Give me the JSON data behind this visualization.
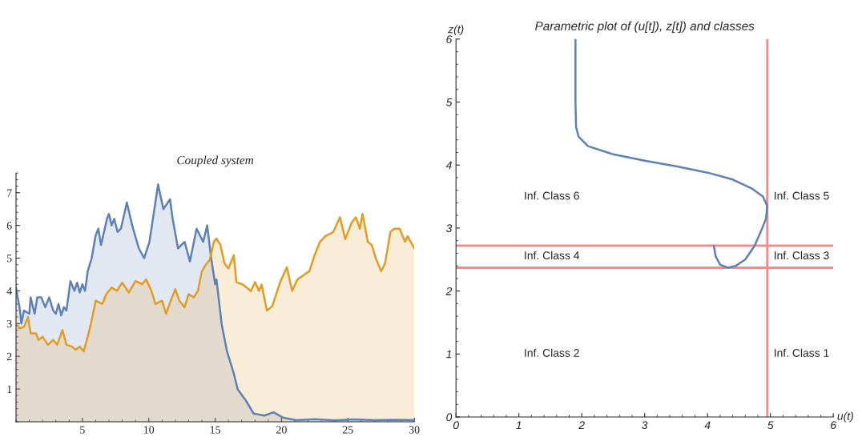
{
  "chart_data": [
    {
      "type": "area",
      "title": "Coupled system",
      "xlim": [
        0,
        30
      ],
      "ylim": [
        0,
        7.6
      ],
      "xticks": [
        5,
        10,
        15,
        20,
        25,
        30
      ],
      "yticks": [
        1,
        2,
        3,
        4,
        5,
        6,
        7
      ],
      "grid": false,
      "legend": false,
      "series": [
        {
          "color": "#5e81b5",
          "x": [
            0,
            0.3,
            0.4,
            0.6,
            1.0,
            1.1,
            1.4,
            1.6,
            1.9,
            2.2,
            2.5,
            2.8,
            3.0,
            3.2,
            3.4,
            3.6,
            3.8,
            4.1,
            4.4,
            4.6,
            4.8,
            5.0,
            5.2,
            5.4,
            5.7,
            6.0,
            6.2,
            6.4,
            6.85,
            7.0,
            7.2,
            7.4,
            7.65,
            7.9,
            8.35,
            8.75,
            9.25,
            9.65,
            10.05,
            10.7,
            11.1,
            11.6,
            11.8,
            12.2,
            12.7,
            13.1,
            13.6,
            14.1,
            14.4,
            14.7,
            15.0,
            15.1,
            15.5,
            15.9,
            16.4,
            16.7,
            17.3,
            17.9,
            18.7,
            19.4,
            20.1,
            21.1,
            22.5,
            24.0,
            25.5,
            27.0,
            28.5,
            30.0
          ],
          "values": [
            4.1,
            3.4,
            3.0,
            3.4,
            3.3,
            3.8,
            3.3,
            3.8,
            3.8,
            3.5,
            3.8,
            3.4,
            3.3,
            3.6,
            3.25,
            3.5,
            3.4,
            4.3,
            4.0,
            4.25,
            3.95,
            4.2,
            4.0,
            4.6,
            5.0,
            5.7,
            5.9,
            5.4,
            6.2,
            6.35,
            6.0,
            6.2,
            5.8,
            5.9,
            6.7,
            6.0,
            5.3,
            5.0,
            5.5,
            7.25,
            6.5,
            6.8,
            6.2,
            5.3,
            5.5,
            4.9,
            5.9,
            5.5,
            6.0,
            5.0,
            4.2,
            4.35,
            2.96,
            2.14,
            1.48,
            0.99,
            0.66,
            0.25,
            0.19,
            0.29,
            0.13,
            0.05,
            0.08,
            0.04,
            0.07,
            0.05,
            0.06,
            0.05
          ]
        },
        {
          "color": "#e19c24",
          "x": [
            0,
            0.3,
            0.6,
            0.9,
            1.1,
            1.5,
            1.7,
            2.0,
            2.4,
            2.8,
            3.1,
            3.5,
            3.8,
            4.2,
            4.5,
            4.8,
            5.1,
            5.4,
            5.7,
            6.0,
            6.5,
            6.8,
            7.2,
            7.6,
            8.0,
            8.5,
            9.0,
            9.5,
            9.8,
            10.2,
            10.5,
            11.0,
            11.3,
            11.7,
            12.0,
            12.3,
            12.7,
            13.0,
            13.4,
            13.7,
            14.0,
            14.3,
            14.6,
            14.9,
            15.1,
            15.4,
            15.7,
            16.0,
            16.4,
            16.6,
            17.1,
            17.7,
            18.0,
            18.3,
            18.5,
            18.9,
            19.3,
            19.9,
            20.4,
            20.8,
            21.2,
            21.5,
            21.8,
            22.1,
            22.5,
            22.9,
            23.3,
            23.9,
            24.4,
            24.8,
            25.3,
            25.6,
            25.9,
            26.1,
            26.5,
            26.8,
            27.1,
            27.5,
            27.8,
            28.2,
            28.5,
            28.9,
            29.3,
            29.5,
            30.0
          ],
          "values": [
            3.0,
            2.85,
            2.9,
            3.2,
            2.7,
            2.7,
            2.5,
            2.6,
            2.35,
            2.5,
            2.35,
            2.8,
            2.35,
            2.3,
            2.2,
            2.3,
            2.15,
            2.6,
            3.1,
            3.7,
            3.6,
            3.9,
            4.1,
            4.0,
            4.25,
            3.95,
            4.3,
            4.2,
            4.35,
            4.0,
            3.6,
            3.7,
            3.3,
            3.75,
            4.05,
            3.7,
            3.5,
            3.9,
            3.8,
            4.0,
            4.6,
            4.8,
            4.95,
            5.5,
            5.6,
            5.4,
            4.84,
            4.68,
            5.09,
            4.27,
            4.19,
            3.99,
            4.27,
            4.0,
            4.19,
            3.4,
            3.53,
            4.27,
            4.72,
            4.0,
            4.35,
            4.43,
            4.52,
            4.6,
            5.1,
            5.5,
            5.67,
            5.8,
            6.25,
            5.58,
            6.1,
            6.25,
            5.9,
            6.35,
            5.5,
            5.4,
            5.0,
            4.6,
            4.84,
            5.8,
            5.9,
            5.9,
            5.5,
            5.67,
            5.3
          ]
        }
      ]
    },
    {
      "type": "line",
      "title": "Parametric plot of (u[t]), z[t]) and classes",
      "xlabel": "u(t)",
      "ylabel": "z(t)",
      "xlim": [
        0,
        6
      ],
      "ylim": [
        0,
        6
      ],
      "xticks": [
        0,
        1,
        2,
        3,
        4,
        5,
        6
      ],
      "yticks": [
        0,
        1,
        2,
        3,
        4,
        5,
        6
      ],
      "grid": false,
      "legend": false,
      "series": [
        {
          "color": "#5e81b5",
          "x": [
            1.9,
            1.9,
            1.91,
            1.95,
            2.1,
            2.5,
            3.0,
            3.5,
            4.0,
            4.4,
            4.7,
            4.88,
            4.95,
            4.93,
            4.85,
            4.75,
            4.6,
            4.45,
            4.32,
            4.2,
            4.13,
            4.1
          ],
          "values": [
            6.0,
            5.0,
            4.6,
            4.45,
            4.3,
            4.17,
            4.07,
            3.98,
            3.88,
            3.77,
            3.63,
            3.5,
            3.35,
            3.15,
            2.95,
            2.72,
            2.5,
            2.4,
            2.37,
            2.42,
            2.55,
            2.72
          ]
        }
      ],
      "ref_lines": [
        {
          "axis": "x",
          "value": 4.95,
          "color": "#f48a8a"
        },
        {
          "axis": "y",
          "value": 2.72,
          "color": "#f48a8a"
        },
        {
          "axis": "y",
          "value": 2.37,
          "color": "#f48a8a"
        }
      ],
      "annotations": [
        "Inf. Class 6",
        "Inf. Class 5",
        "Inf. Class 4",
        "Inf. Class 3",
        "Inf. Class 2",
        "Inf. Class 1"
      ]
    }
  ]
}
